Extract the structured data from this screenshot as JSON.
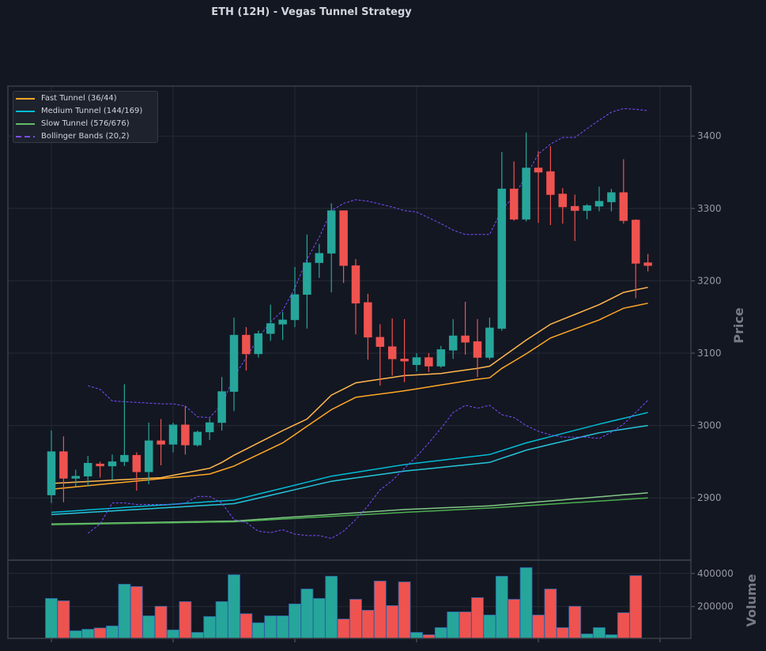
{
  "chart_data": {
    "type": "candlestick",
    "title": "ETH (12H) - Vegas Tunnel Strategy",
    "price_axis": {
      "label": "Price",
      "ticks": [
        2900,
        3000,
        3100,
        3200,
        3300,
        3400
      ],
      "ylim": [
        2814,
        3469
      ]
    },
    "volume_axis": {
      "label": "Volume",
      "ticks": [
        200000,
        400000
      ],
      "ticklabels": [
        "200000",
        "400000"
      ],
      "ylim": [
        8000,
        480000
      ]
    },
    "grid": true,
    "legend_position": "top-left",
    "legend": [
      {
        "label": "Fast Tunnel (36/44)",
        "color": "#ffa726",
        "style": "solid"
      },
      {
        "label": "Medium Tunnel (144/169)",
        "color": "#00bcd4",
        "style": "solid"
      },
      {
        "label": "Slow Tunnel (576/676)",
        "color": "#66bb6a",
        "style": "solid"
      },
      {
        "label": "Bollinger Bands (20,2)",
        "color": "#7c4dff",
        "style": "dashed"
      }
    ],
    "colors": {
      "up": "#26a69a",
      "down": "#ef5350",
      "background": "#131722"
    },
    "ohlc": [
      [
        2904,
        2993,
        2893,
        2964
      ],
      [
        2964,
        2985,
        2894,
        2927
      ],
      [
        2927,
        2939,
        2916,
        2930
      ],
      [
        2930,
        2958,
        2916,
        2948
      ],
      [
        2947,
        2950,
        2928,
        2944
      ],
      [
        2944,
        2960,
        2925,
        2950
      ],
      [
        2950,
        3057,
        2944,
        2959
      ],
      [
        2959,
        2963,
        2910,
        2936
      ],
      [
        2936,
        3004,
        2919,
        2979
      ],
      [
        2979,
        3009,
        2945,
        2974
      ],
      [
        2974,
        3004,
        2963,
        3001
      ],
      [
        3001,
        3027,
        2960,
        2973
      ],
      [
        2973,
        2993,
        2971,
        2991
      ],
      [
        2991,
        3010,
        2980,
        3004
      ],
      [
        3004,
        3067,
        2993,
        3047
      ],
      [
        3047,
        3149,
        3020,
        3125
      ],
      [
        3125,
        3136,
        3076,
        3099
      ],
      [
        3099,
        3131,
        3094,
        3127
      ],
      [
        3127,
        3167,
        3117,
        3141
      ],
      [
        3140,
        3157,
        3118,
        3146
      ],
      [
        3146,
        3219,
        3136,
        3181
      ],
      [
        3181,
        3264,
        3134,
        3225
      ],
      [
        3225,
        3251,
        3204,
        3238
      ],
      [
        3238,
        3307,
        3184,
        3297
      ],
      [
        3297,
        3297,
        3197,
        3221
      ],
      [
        3221,
        3230,
        3126,
        3169
      ],
      [
        3170,
        3182,
        3091,
        3122
      ],
      [
        3122,
        3140,
        3055,
        3109
      ],
      [
        3109,
        3148,
        3069,
        3092
      ],
      [
        3092,
        3147,
        3060,
        3089
      ],
      [
        3084,
        3100,
        3075,
        3094
      ],
      [
        3094,
        3100,
        3074,
        3082
      ],
      [
        3082,
        3110,
        3080,
        3105
      ],
      [
        3104,
        3147,
        3092,
        3124
      ],
      [
        3124,
        3171,
        3098,
        3115
      ],
      [
        3116,
        3147,
        3067,
        3094
      ],
      [
        3094,
        3149,
        3091,
        3135
      ],
      [
        3134,
        3378,
        3131,
        3327
      ],
      [
        3327,
        3365,
        3283,
        3285
      ],
      [
        3285,
        3405,
        3282,
        3356
      ],
      [
        3356,
        3379,
        3280,
        3350
      ],
      [
        3351,
        3386,
        3277,
        3319
      ],
      [
        3320,
        3328,
        3279,
        3302
      ],
      [
        3303,
        3319,
        3255,
        3297
      ],
      [
        3297,
        3306,
        3285,
        3304
      ],
      [
        3303,
        3330,
        3296,
        3310
      ],
      [
        3309,
        3327,
        3296,
        3322
      ],
      [
        3322,
        3368,
        3279,
        3283
      ],
      [
        3284,
        3285,
        3176,
        3224
      ],
      [
        3225,
        3237,
        3213,
        3221
      ]
    ],
    "volume": [
      249000,
      235000,
      54000,
      63000,
      71000,
      83000,
      335000,
      321000,
      144000,
      202000,
      59000,
      230000,
      44000,
      140000,
      230000,
      392000,
      157000,
      102000,
      144000,
      144000,
      216000,
      306000,
      249000,
      383000,
      125000,
      244000,
      178000,
      354000,
      206000,
      349000,
      44000,
      30000,
      73000,
      168000,
      168000,
      254000,
      149000,
      383000,
      244000,
      435000,
      149000,
      306000,
      73000,
      202000,
      35000,
      73000,
      30000,
      163000,
      387000,
      null
    ],
    "series": [
      {
        "name": "fast_upper",
        "color": "#ffb74d",
        "style": "solid",
        "keys": {
          "1": 2920,
          "10": 2928,
          "14": 2941,
          "15": 2949,
          "16": 2959,
          "20": 2993,
          "22": 3009,
          "24": 3042,
          "26": 3059,
          "30": 3069,
          "33": 3072,
          "36": 3079,
          "37": 3082,
          "38": 3094,
          "40": 3118,
          "42": 3140,
          "46": 3167,
          "48": 3184,
          "50": 3191
        }
      },
      {
        "name": "fast_lower",
        "color": "#ffa726",
        "style": "solid",
        "keys": {
          "1": 2912,
          "14": 2933,
          "16": 2944,
          "20": 2976,
          "24": 3022,
          "26": 3039,
          "30": 3048,
          "36": 3064,
          "37": 3066,
          "38": 3079,
          "40": 3099,
          "42": 3121,
          "46": 3146,
          "48": 3162,
          "50": 3169
        }
      },
      {
        "name": "medium_upper",
        "color": "#00bcd4",
        "style": "solid",
        "keys": {
          "1": 2880,
          "16": 2897,
          "24": 2930,
          "30": 2946,
          "37": 2960,
          "40": 2976,
          "46": 3002,
          "50": 3018
        }
      },
      {
        "name": "medium_lower",
        "color": "#26c6da",
        "style": "solid",
        "keys": {
          "1": 2877,
          "16": 2892,
          "24": 2923,
          "30": 2937,
          "37": 2949,
          "40": 2966,
          "46": 2990,
          "50": 3000
        }
      },
      {
        "name": "slow_upper",
        "color": "#81c784",
        "style": "solid",
        "keys": {
          "1": 2864,
          "16": 2868,
          "30": 2884,
          "37": 2889,
          "50": 2907
        }
      },
      {
        "name": "slow_lower",
        "color": "#4caf50",
        "style": "solid",
        "keys": {
          "1": 2863,
          "16": 2867,
          "30": 2880,
          "37": 2886,
          "50": 2900
        }
      },
      {
        "name": "bb_upper",
        "color": "#7c4dff",
        "style": "dashed",
        "keys": {
          "4": 3055,
          "5": 3050,
          "6": 3034,
          "7": 3033,
          "10": 3030,
          "11": 3030,
          "12": 3027,
          "13": 3012,
          "14": 3011,
          "15": 3029,
          "16": 3067,
          "17": 3094,
          "18": 3121,
          "19": 3143,
          "20": 3159,
          "21": 3190,
          "22": 3230,
          "23": 3260,
          "24": 3297,
          "25": 3307,
          "26": 3312,
          "27": 3310,
          "28": 3306,
          "29": 3302,
          "30": 3297,
          "31": 3295,
          "32": 3287,
          "33": 3279,
          "34": 3270,
          "35": 3264,
          "36": 3264,
          "37": 3264,
          "38": 3298,
          "39": 3317,
          "40": 3345,
          "41": 3375,
          "42": 3389,
          "43": 3398,
          "44": 3398,
          "45": 3410,
          "46": 3422,
          "47": 3433,
          "48": 3438,
          "49": 3437,
          "50": 3435
        }
      },
      {
        "name": "bb_lower",
        "color": "#7c4dff",
        "style": "dashed",
        "keys": {
          "4": 2851,
          "5": 2864,
          "6": 2893,
          "7": 2893,
          "8": 2891,
          "10": 2891,
          "11": 2891,
          "12": 2893,
          "13": 2902,
          "14": 2902,
          "15": 2893,
          "16": 2870,
          "17": 2866,
          "18": 2854,
          "19": 2852,
          "20": 2856,
          "21": 2850,
          "22": 2848,
          "23": 2848,
          "24": 2844,
          "25": 2854,
          "26": 2870,
          "27": 2889,
          "28": 2911,
          "29": 2924,
          "30": 2941,
          "31": 2957,
          "32": 2976,
          "33": 2996,
          "34": 3018,
          "35": 3028,
          "36": 3024,
          "37": 3028,
          "38": 3015,
          "39": 3011,
          "40": 3000,
          "41": 2992,
          "42": 2987,
          "43": 2984,
          "44": 2984,
          "45": 2984,
          "46": 2982,
          "47": 2991,
          "48": 3002,
          "49": 3018,
          "50": 3035
        }
      }
    ]
  }
}
